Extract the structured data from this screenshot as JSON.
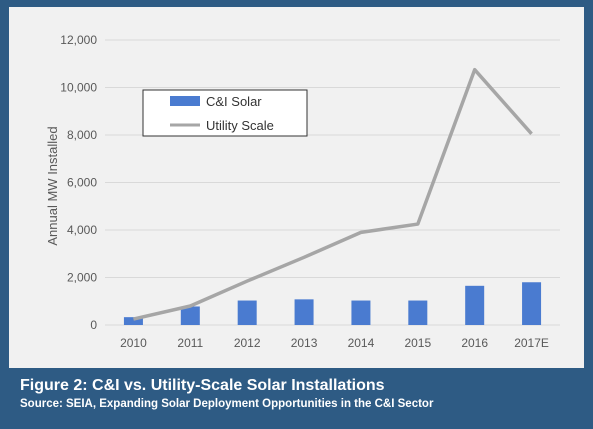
{
  "caption": {
    "title": "Figure 2: C&I vs. Utility-Scale Solar Installations",
    "source": "Source: SEIA, Expanding Solar Deployment Opportunities in the C&I Sector"
  },
  "colors": {
    "frame": "#2e5b84",
    "panel": "#f1f1f1",
    "bar": "#4a7bd0",
    "line": "#a6a6a6",
    "grid": "#d9d9d9"
  },
  "chart_data": {
    "type": "bar",
    "categories": [
      "2010",
      "2011",
      "2012",
      "2013",
      "2014",
      "2015",
      "2016",
      "2017E"
    ],
    "series": [
      {
        "name": "C&I Solar",
        "type": "bar",
        "values": [
          330,
          780,
          1030,
          1080,
          1030,
          1030,
          1650,
          1800
        ]
      },
      {
        "name": "Utility Scale",
        "type": "line",
        "values": [
          250,
          800,
          1850,
          2850,
          3900,
          4250,
          10750,
          8050
        ]
      }
    ],
    "ylabel": "Annual MW Installed",
    "ylim": [
      0,
      12000
    ],
    "yticks": [
      0,
      2000,
      4000,
      6000,
      8000,
      10000,
      12000
    ],
    "ytick_labels": [
      "0",
      "2,000",
      "4,000",
      "6,000",
      "8,000",
      "10,000",
      "12,000"
    ],
    "grid": true,
    "legend_position": "top-left"
  }
}
